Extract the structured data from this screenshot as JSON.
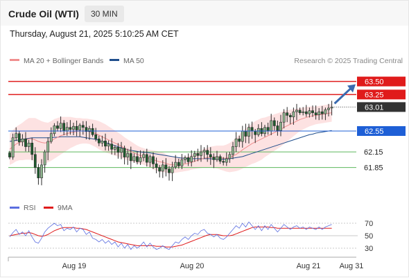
{
  "header": {
    "instrument": "Crude Oil (WTI)",
    "timeframe": "30 MIN",
    "datetime": "Thursday, August 21, 2025 5:10:25 AM CET"
  },
  "copyright": "Research © 2025 Trading Central",
  "colors": {
    "bollinger_fill": "#fde2e2",
    "ma20": "#f08f8f",
    "ma50": "#1f4e8c",
    "candle": "#2a2a2a",
    "candle_up_body": "#8fb58f",
    "candle_down_body": "#1e5a2e",
    "resistance": "#e01b1b",
    "current": "#333333",
    "pivot": "#1e5fd6",
    "support": "#5cb85c",
    "arrow": "#3a6ab0",
    "rsi": "#5b6ee0",
    "rsi_ma": "#e01b1b"
  },
  "chart_data": [
    {
      "type": "candlestick",
      "legend": [
        {
          "label": "MA 20 + Bollinger Bands",
          "color": "#f08f8f"
        },
        {
          "label": "MA 50",
          "color": "#1f4e8c"
        }
      ],
      "x_ticks": [
        "Aug 19",
        "Aug 20",
        "Aug 21",
        "Aug 31"
      ],
      "ylim": [
        61.3,
        63.72
      ],
      "price_levels": [
        {
          "value": 63.5,
          "label": "63.50",
          "kind": "resistance"
        },
        {
          "value": 63.25,
          "label": "63.25",
          "kind": "resistance"
        },
        {
          "value": 63.01,
          "label": "63.01",
          "kind": "current"
        },
        {
          "value": 62.55,
          "label": "62.55",
          "kind": "pivot"
        },
        {
          "value": 62.15,
          "label": "62.15",
          "kind": "support"
        },
        {
          "value": 61.85,
          "label": "61.85",
          "kind": "support"
        }
      ],
      "closes": [
        62.05,
        62.42,
        62.5,
        62.34,
        62.4,
        62.25,
        62.32,
        62.1,
        61.85,
        61.65,
        61.9,
        62.15,
        62.35,
        62.5,
        62.65,
        62.6,
        62.7,
        62.55,
        62.62,
        62.58,
        62.64,
        62.57,
        62.66,
        62.62,
        62.54,
        62.6,
        62.48,
        62.4,
        62.32,
        62.36,
        62.26,
        62.3,
        62.2,
        62.24,
        62.14,
        62.22,
        62.05,
        62.12,
        61.98,
        62.06,
        61.96,
        62.04,
        62.1,
        61.95,
        62.06,
        61.92,
        61.85,
        61.78,
        61.9,
        61.82,
        61.75,
        61.86,
        61.95,
        61.88,
        62.0,
        62.04,
        61.96,
        62.06,
        62.12,
        62.08,
        62.15,
        62.18,
        62.1,
        62.05,
        62.0,
        62.06,
        61.97,
        61.95,
        62.02,
        62.1,
        62.25,
        62.4,
        62.35,
        62.55,
        62.45,
        62.62,
        62.55,
        62.48,
        62.6,
        62.5,
        62.62,
        62.55,
        62.75,
        62.65,
        62.56,
        62.72,
        62.9,
        62.85,
        62.82,
        62.92,
        62.95,
        62.9,
        62.92,
        62.88,
        62.94,
        62.9,
        62.86,
        62.92,
        62.88,
        62.96,
        62.99,
        63.01
      ],
      "ma20": [
        62.2,
        62.25,
        62.3,
        62.33,
        62.35,
        62.38,
        62.4,
        62.4,
        62.38,
        62.35,
        62.33,
        62.32,
        62.33,
        62.36,
        62.4,
        62.43,
        62.46,
        62.48,
        62.5,
        62.52,
        62.53,
        62.54,
        62.55,
        62.55,
        62.55,
        62.54,
        62.52,
        62.5,
        62.47,
        62.44,
        62.41,
        62.38,
        62.35,
        62.32,
        62.29,
        62.26,
        62.22,
        62.19,
        62.16,
        62.13,
        62.1,
        62.08,
        62.06,
        62.04,
        62.02,
        62.0,
        61.98,
        61.96,
        61.95,
        61.93,
        61.91,
        61.9,
        61.9,
        61.9,
        61.91,
        61.92,
        61.93,
        61.95,
        61.97,
        61.99,
        62.01,
        62.03,
        62.04,
        62.05,
        62.05,
        62.05,
        62.04,
        62.03,
        62.03,
        62.04,
        62.07,
        62.1,
        62.14,
        62.19,
        62.23,
        62.27,
        62.31,
        62.34,
        62.37,
        62.4,
        62.43,
        62.46,
        62.49,
        62.52,
        62.55,
        62.58,
        62.62,
        62.65,
        62.68,
        62.71,
        62.74,
        62.77,
        62.79,
        62.81,
        62.83,
        62.84,
        62.85,
        62.86,
        62.87,
        62.88,
        62.89,
        62.9
      ],
      "ma50": [
        62.35,
        62.36,
        62.37,
        62.38,
        62.39,
        62.4,
        62.41,
        62.42,
        62.42,
        62.42,
        62.42,
        62.42,
        62.42,
        62.42,
        62.43,
        62.43,
        62.44,
        62.44,
        62.44,
        62.44,
        62.44,
        62.44,
        62.44,
        62.43,
        62.42,
        62.41,
        62.4,
        62.39,
        62.37,
        62.35,
        62.33,
        62.31,
        62.29,
        62.27,
        62.25,
        62.23,
        62.21,
        62.19,
        62.18,
        62.17,
        62.16,
        62.15,
        62.14,
        62.14,
        62.13,
        62.12,
        62.11,
        62.1,
        62.09,
        62.08,
        62.07,
        62.06,
        62.05,
        62.04,
        62.03,
        62.03,
        62.02,
        62.02,
        62.02,
        62.02,
        62.02,
        62.02,
        62.02,
        62.02,
        62.01,
        62.01,
        62.01,
        62.01,
        62.01,
        62.02,
        62.03,
        62.04,
        62.05,
        62.06,
        62.08,
        62.1,
        62.12,
        62.14,
        62.16,
        62.18,
        62.2,
        62.22,
        62.24,
        62.26,
        62.28,
        62.3,
        62.32,
        62.34,
        62.36,
        62.38,
        62.4,
        62.42,
        62.44,
        62.46,
        62.48,
        62.49,
        62.51,
        62.52,
        62.53,
        62.54,
        62.55,
        62.56
      ],
      "bb_width": [
        0.3,
        0.32,
        0.33,
        0.34,
        0.36,
        0.38,
        0.4,
        0.4,
        0.42,
        0.42,
        0.41,
        0.4,
        0.38,
        0.38,
        0.38,
        0.37,
        0.36,
        0.34,
        0.32,
        0.3,
        0.28,
        0.26,
        0.25,
        0.24,
        0.24,
        0.24,
        0.25,
        0.26,
        0.27,
        0.27,
        0.27,
        0.26,
        0.25,
        0.24,
        0.23,
        0.22,
        0.21,
        0.2,
        0.19,
        0.18,
        0.17,
        0.16,
        0.16,
        0.16,
        0.17,
        0.18,
        0.19,
        0.19,
        0.19,
        0.18,
        0.17,
        0.16,
        0.15,
        0.14,
        0.14,
        0.14,
        0.14,
        0.14,
        0.15,
        0.16,
        0.17,
        0.18,
        0.19,
        0.2,
        0.21,
        0.22,
        0.23,
        0.24,
        0.26,
        0.28,
        0.3,
        0.32,
        0.34,
        0.36,
        0.37,
        0.38,
        0.39,
        0.4,
        0.4,
        0.4,
        0.38,
        0.37,
        0.36,
        0.35,
        0.34,
        0.33,
        0.32,
        0.3,
        0.28,
        0.26,
        0.24,
        0.22,
        0.21,
        0.2,
        0.19,
        0.18,
        0.17,
        0.17,
        0.17,
        0.17,
        0.17,
        0.17
      ]
    },
    {
      "type": "line",
      "legend": [
        {
          "label": "RSI",
          "color": "#5b6ee0"
        },
        {
          "label": "9MA",
          "color": "#e01b1b"
        }
      ],
      "ylim": [
        20,
        80
      ],
      "y_ticks": [
        70,
        50,
        30
      ],
      "rsi": [
        48,
        55,
        60,
        52,
        56,
        50,
        58,
        48,
        40,
        38,
        46,
        56,
        62,
        66,
        70,
        66,
        68,
        58,
        62,
        60,
        64,
        56,
        62,
        60,
        52,
        56,
        46,
        44,
        40,
        44,
        38,
        42,
        36,
        40,
        32,
        38,
        30,
        36,
        28,
        34,
        30,
        34,
        40,
        32,
        38,
        32,
        28,
        30,
        34,
        30,
        28,
        34,
        40,
        38,
        44,
        48,
        44,
        50,
        54,
        52,
        58,
        60,
        54,
        52,
        48,
        52,
        46,
        44,
        48,
        54,
        60,
        66,
        62,
        70,
        64,
        72,
        66,
        60,
        66,
        58,
        66,
        60,
        68,
        62,
        56,
        62,
        68,
        64,
        60,
        64,
        66,
        62,
        64,
        60,
        64,
        62,
        60,
        64,
        60,
        64,
        66,
        68
      ],
      "ma9": [
        50,
        51,
        52,
        53,
        54,
        54,
        55,
        54,
        52,
        50,
        49,
        50,
        52,
        55,
        58,
        60,
        62,
        63,
        63,
        63,
        63,
        62,
        62,
        61,
        60,
        58,
        56,
        54,
        52,
        50,
        48,
        46,
        44,
        42,
        40,
        39,
        38,
        37,
        36,
        35,
        34,
        34,
        34,
        34,
        34,
        34,
        33,
        33,
        33,
        32,
        32,
        32,
        33,
        34,
        35,
        37,
        39,
        41,
        43,
        45,
        47,
        49,
        51,
        52,
        52,
        52,
        51,
        50,
        50,
        50,
        51,
        53,
        55,
        57,
        59,
        61,
        63,
        64,
        64,
        64,
        64,
        64,
        63,
        63,
        62,
        62,
        62,
        62,
        62,
        62,
        62,
        62,
        62,
        62,
        62,
        62,
        62,
        62,
        62,
        62,
        62,
        62
      ]
    }
  ]
}
